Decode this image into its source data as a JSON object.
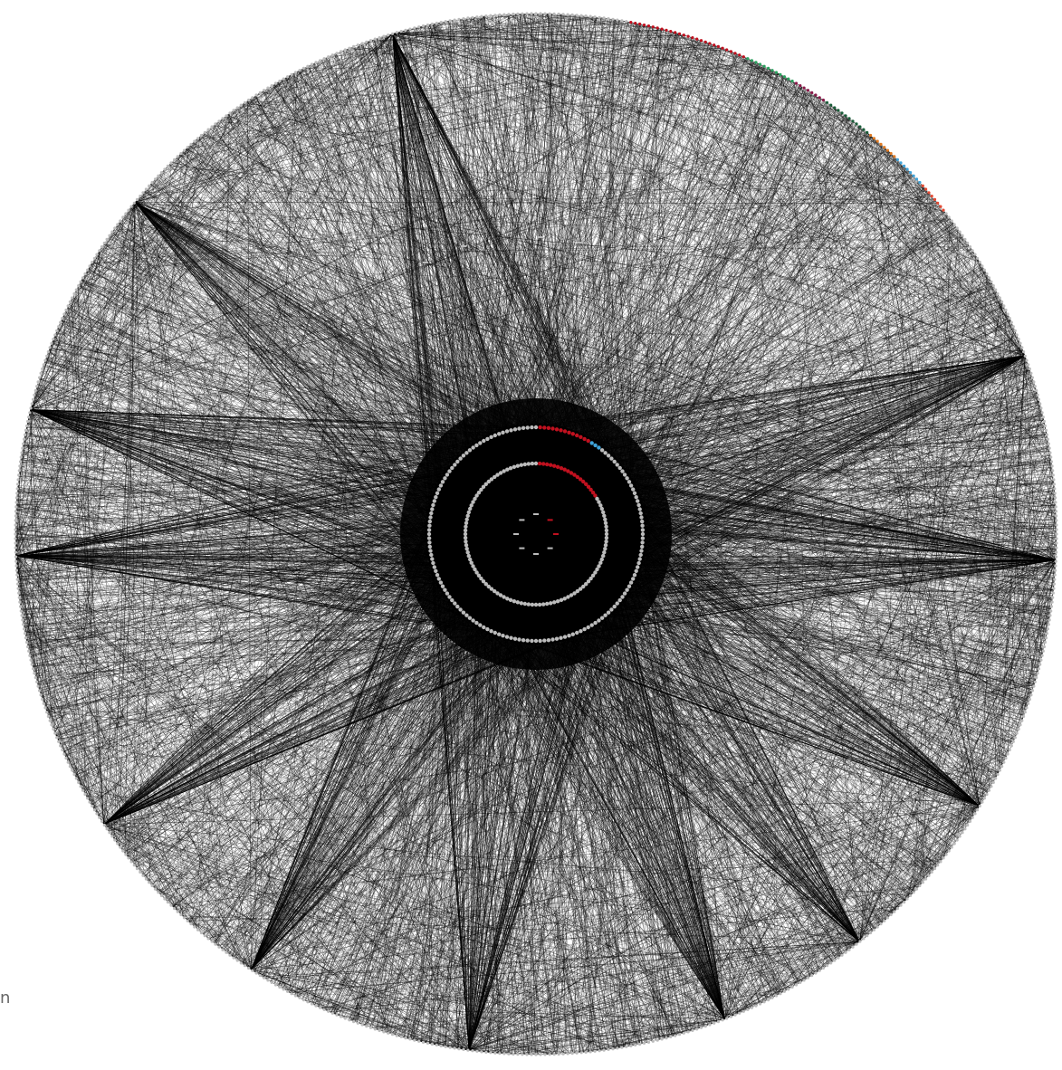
{
  "figure": {
    "type": "circular network graph",
    "background_color": "#ffffff",
    "edge_color": "#000000",
    "node_color": "#bbbbbb",
    "accent_colors": [
      "#c0111f",
      "#2ca25f",
      "#8b1a4a",
      "#1b5e3a",
      "#e07b24",
      "#3fa3d9",
      "#e34a33",
      "#d4b106"
    ],
    "outer_ring_node_count": 720,
    "middle_ring_node_count": 160,
    "inner_ring_node_count": 120,
    "center_node_count": 8
  },
  "corner_label": "n"
}
